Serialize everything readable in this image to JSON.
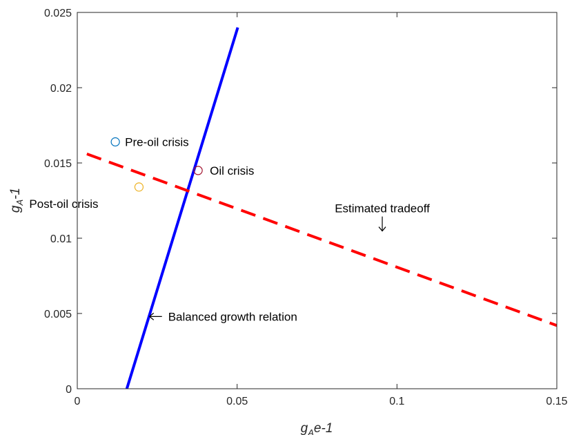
{
  "chart_data": {
    "type": "line",
    "title": "",
    "xlabel": {
      "base": "g",
      "sub": "A",
      "tail": "e-1"
    },
    "ylabel": {
      "base": "g",
      "sub": "A",
      "tail": "-1"
    },
    "xlim": [
      0,
      0.15
    ],
    "ylim": [
      0,
      0.025
    ],
    "xticks": [
      0,
      0.05,
      0.1,
      0.15
    ],
    "xtick_labels": [
      "0",
      "0.05",
      "0.1",
      "0.15"
    ],
    "yticks": [
      0,
      0.005,
      0.01,
      0.015,
      0.02,
      0.025
    ],
    "ytick_labels": [
      "0",
      "0.005",
      "0.01",
      "0.015",
      "0.02",
      "0.025"
    ],
    "grid": false,
    "series": [
      {
        "style": "solid",
        "color": "#0000ff",
        "x": [
          0.0155,
          0.0502
        ],
        "y": [
          0,
          0.024
        ]
      },
      {
        "style": "dashed",
        "color": "#ff0000",
        "x": [
          0.003,
          0.15
        ],
        "y": [
          0.0156,
          0.0042
        ]
      }
    ],
    "points": [
      {
        "label": "Pre-oil crisis",
        "x": 0.0119,
        "y": 0.0164,
        "color": "#0072bd"
      },
      {
        "label": "Oil crisis",
        "x": 0.0378,
        "y": 0.0145,
        "color": "#a2142f"
      },
      {
        "label": "Post-oil crisis",
        "x": 0.0193,
        "y": 0.0134,
        "color": "#edb120"
      }
    ],
    "annotations": [
      {
        "text": "Estimated tradeoff",
        "x": 0.0954,
        "y": 0.0108,
        "arrow": "down"
      },
      {
        "text": "Balanced growth relation",
        "x": 0.0226,
        "y": 0.0048,
        "arrow": "left"
      }
    ]
  }
}
